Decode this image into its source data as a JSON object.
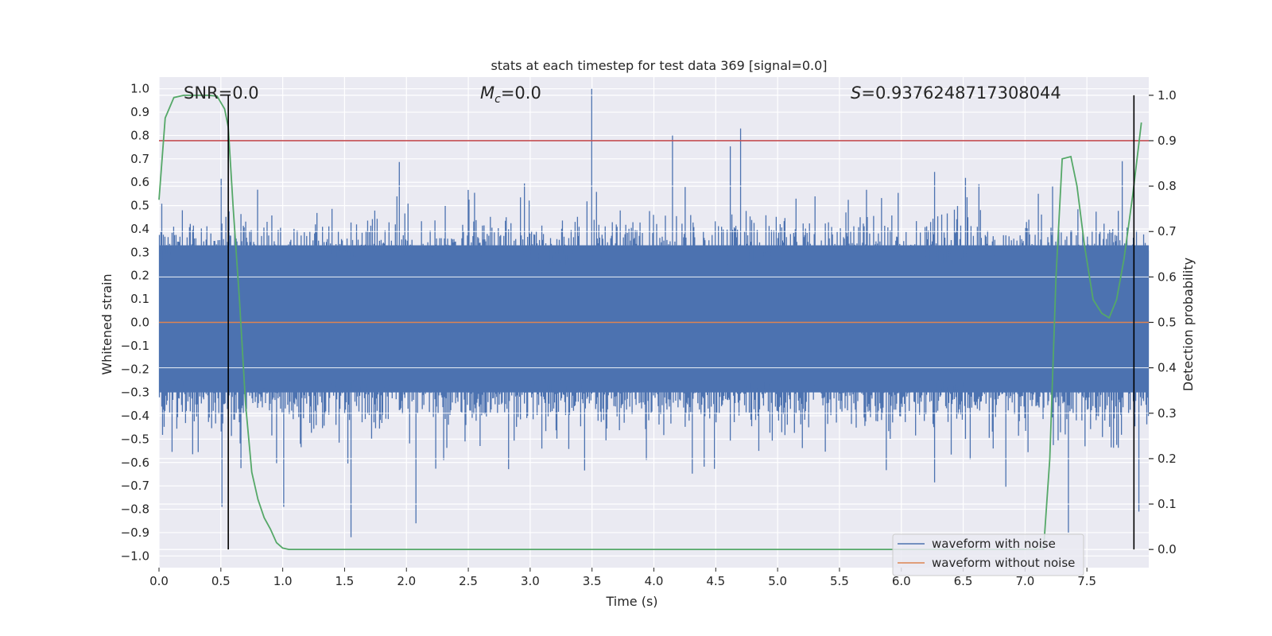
{
  "chart_data": {
    "type": "line",
    "title": "stats at each timestep for test data 369 [signal=0.0]",
    "xlabel": "Time (s)",
    "ylabel_left": "Whitened strain",
    "ylabel_right": "Detection probability",
    "xlim": [
      0.0,
      8.0
    ],
    "ylim_left": [
      -1.05,
      1.05
    ],
    "ylim_right": [
      -0.04,
      1.04
    ],
    "x_ticks": [
      "0.0",
      "0.5",
      "1.0",
      "1.5",
      "2.0",
      "2.5",
      "3.0",
      "3.5",
      "4.0",
      "4.5",
      "5.0",
      "5.5",
      "6.0",
      "6.5",
      "7.0",
      "7.5"
    ],
    "y_ticks_left": [
      "-1.0",
      "-0.9",
      "-0.8",
      "-0.7",
      "-0.6",
      "-0.5",
      "-0.4",
      "-0.3",
      "-0.2",
      "-0.1",
      "0.0",
      "0.1",
      "0.2",
      "0.3",
      "0.4",
      "0.5",
      "0.6",
      "0.7",
      "0.8",
      "0.9",
      "1.0"
    ],
    "y_ticks_right": [
      "0.0",
      "0.1",
      "0.2",
      "0.3",
      "0.4",
      "0.5",
      "0.6",
      "0.7",
      "0.8",
      "0.9",
      "1.0"
    ],
    "annotations": {
      "snr": "SNR=0.0",
      "mc_symbol": "M",
      "mc_sub": "c",
      "mc_value": "=0.0",
      "s_symbol": "S",
      "s_value": "=0.9376248717308044"
    },
    "legend": [
      {
        "label": "waveform with noise",
        "color": "#4c72b0"
      },
      {
        "label": "waveform without noise",
        "color": "#dd8452"
      }
    ],
    "colors": {
      "noise": "#4c72b0",
      "clean": "#dd8452",
      "probability": "#55a868",
      "threshold": "#c44e52",
      "marker": "#000000",
      "plot_bg": "#eaeaf2"
    },
    "threshold_probability": 0.9,
    "clean_waveform_value": 0.0,
    "vertical_markers_s": [
      0.56,
      7.88
    ],
    "noise_waveform": {
      "description_values": "envelope of whitened strain samples (seeded synthetic reconstruction)",
      "typical_max": 0.45,
      "typical_min": -0.45,
      "peaks": [
        {
          "t": 3.5,
          "v": 1.0
        },
        {
          "t": 4.7,
          "v": 0.83
        },
        {
          "t": 4.15,
          "v": 0.8
        },
        {
          "t": 1.55,
          "v": -0.92
        },
        {
          "t": 7.35,
          "v": -0.9
        },
        {
          "t": 2.08,
          "v": -0.86
        },
        {
          "t": 0.51,
          "v": -0.79
        },
        {
          "t": 1.01,
          "v": -0.79
        },
        {
          "t": 7.92,
          "v": -0.81
        }
      ]
    },
    "detection_probability": {
      "t": [
        0.0,
        0.05,
        0.12,
        0.2,
        0.3,
        0.4,
        0.47,
        0.53,
        0.56,
        0.6,
        0.65,
        0.7,
        0.75,
        0.8,
        0.85,
        0.9,
        0.95,
        1.0,
        1.05,
        2.0,
        3.0,
        4.0,
        5.0,
        6.0,
        7.0,
        7.15,
        7.2,
        7.25,
        7.3,
        7.37,
        7.42,
        7.48,
        7.55,
        7.62,
        7.68,
        7.74,
        7.8,
        7.87,
        7.94
      ],
      "p": [
        0.77,
        0.95,
        0.995,
        1.0,
        1.0,
        1.0,
        0.998,
        0.97,
        0.93,
        0.75,
        0.55,
        0.32,
        0.17,
        0.11,
        0.07,
        0.045,
        0.015,
        0.003,
        0.0,
        0.0,
        0.0,
        0.0,
        0.0,
        0.0,
        0.0,
        0.001,
        0.2,
        0.6,
        0.86,
        0.865,
        0.8,
        0.67,
        0.55,
        0.52,
        0.51,
        0.55,
        0.64,
        0.78,
        0.94
      ]
    }
  }
}
